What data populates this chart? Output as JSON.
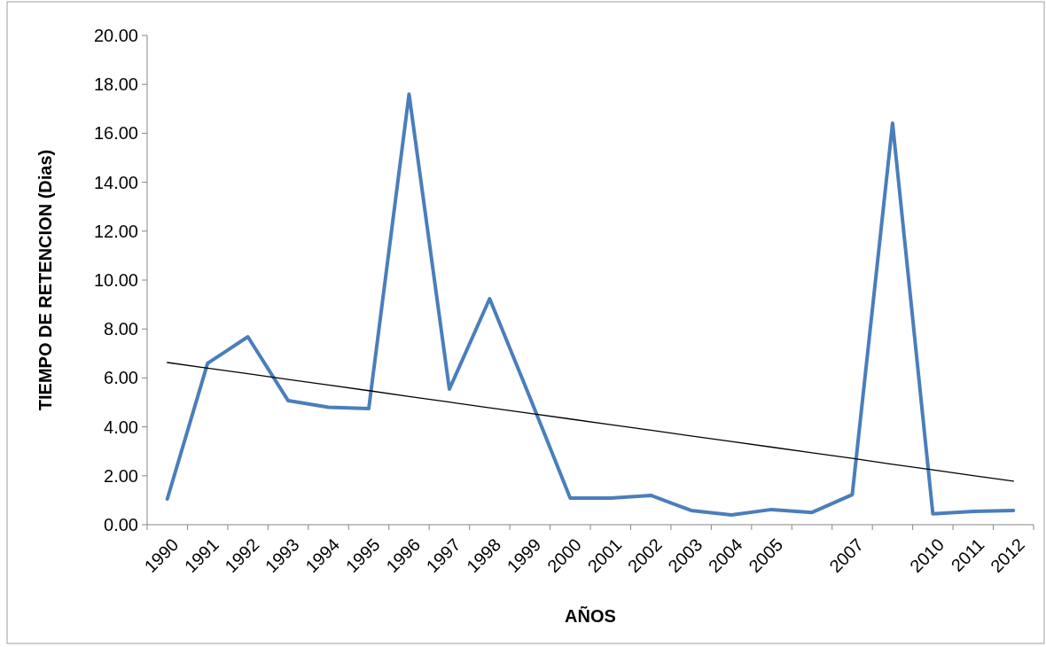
{
  "chart_data": {
    "type": "line",
    "xlabel": "AÑOS",
    "ylabel": "TIEMPO DE RETENCION (Dias)",
    "categories": [
      "1990",
      "1991",
      "1992",
      "1993",
      "1994",
      "1995",
      "1996",
      "1997",
      "1998",
      "1999",
      "2000",
      "2001",
      "2002",
      "2003",
      "2004",
      "2005",
      null,
      "2007",
      null,
      "2010",
      "2011",
      "2012"
    ],
    "series": [
      {
        "color": "#4a7ebb",
        "values": [
          1.05,
          6.6,
          7.68,
          5.07,
          4.8,
          4.75,
          17.6,
          5.54,
          9.24,
          5.2,
          1.09,
          1.09,
          1.2,
          0.58,
          0.4,
          0.62,
          0.5,
          1.23,
          16.41,
          0.44,
          0.54,
          0.58
        ]
      },
      {
        "type": "line",
        "color": "#000000",
        "values": [
          6.63,
          6.4,
          6.17,
          5.94,
          5.71,
          5.48,
          5.24,
          5.01,
          4.78,
          4.55,
          4.32,
          4.09,
          3.86,
          3.63,
          3.4,
          3.17,
          2.94,
          2.71,
          2.47,
          2.24,
          2.01,
          1.78
        ]
      }
    ],
    "ylim": [
      0,
      20
    ],
    "yticks": [
      {
        "value": 0,
        "label": "0.00"
      },
      {
        "value": 2,
        "label": "2.00"
      },
      {
        "value": 4,
        "label": "4.00"
      },
      {
        "value": 6,
        "label": "6.00"
      },
      {
        "value": 8,
        "label": "8.00"
      },
      {
        "value": 10,
        "label": "10.00"
      },
      {
        "value": 12,
        "label": "12.00"
      },
      {
        "value": 14,
        "label": "14.00"
      },
      {
        "value": 16,
        "label": "16.00"
      },
      {
        "value": 18,
        "label": "18.00"
      },
      {
        "value": 20,
        "label": "20.00"
      }
    ],
    "grid": false,
    "marker": "none",
    "line_style": "solid"
  }
}
